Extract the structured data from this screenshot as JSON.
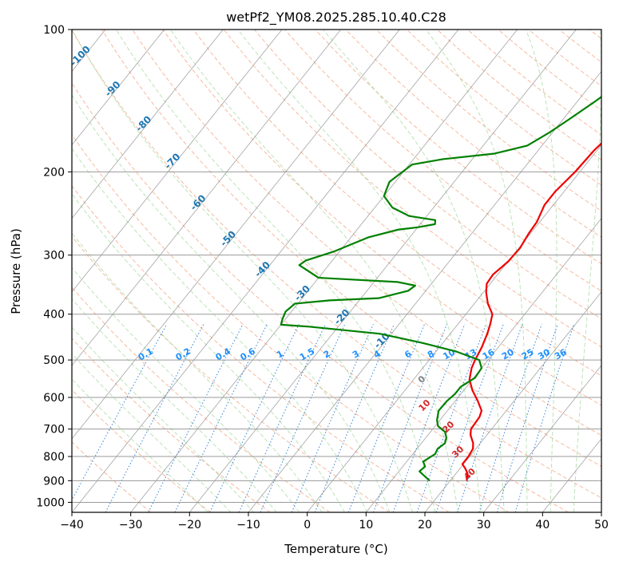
{
  "chart_data": {
    "type": "line",
    "title": "wetPf2_YM08.2025.285.10.40.C28",
    "xlabel": "Temperature (°C)",
    "ylabel": "Pressure (hPa)",
    "xlim": [
      -40,
      50
    ],
    "ylim": [
      1050,
      100
    ],
    "y_scale": "log",
    "grid": true,
    "x_ticks": [
      -40,
      -30,
      -20,
      -10,
      0,
      10,
      20,
      30,
      40,
      50
    ],
    "y_ticks": [
      100,
      200,
      300,
      400,
      500,
      600,
      700,
      800,
      900,
      1000
    ],
    "isotherm_labels": [
      -100,
      -90,
      -80,
      -70,
      -60,
      -50,
      -40,
      -30,
      -20,
      -10
    ],
    "mixing_ratio_labels": [
      "0.1",
      "0.2",
      "0.4",
      "0.6",
      "1",
      "1.5",
      "2",
      "3",
      "4",
      "6",
      "8",
      "10",
      "13",
      "16",
      "20",
      "25",
      "30",
      "36"
    ],
    "moist_lapse_labels": [
      "0",
      "10",
      "20",
      "30",
      "40"
    ],
    "series": [
      {
        "role": "temperature",
        "color": "#ee0000",
        "points": [
          [
            22.8,
            900
          ],
          [
            22.0,
            870
          ],
          [
            21.0,
            850
          ],
          [
            19.8,
            830
          ],
          [
            19.8,
            800
          ],
          [
            19.5,
            770
          ],
          [
            18.8,
            750
          ],
          [
            17.2,
            720
          ],
          [
            16.5,
            700
          ],
          [
            16.3,
            660
          ],
          [
            15.8,
            640
          ],
          [
            13.8,
            610
          ],
          [
            11.5,
            580
          ],
          [
            9.5,
            550
          ],
          [
            8.3,
            520
          ],
          [
            7.8,
            500
          ],
          [
            7.2,
            470
          ],
          [
            6.3,
            440
          ],
          [
            5.5,
            420
          ],
          [
            4.5,
            400
          ],
          [
            2.3,
            380
          ],
          [
            0.5,
            360
          ],
          [
            -0.6,
            345
          ],
          [
            -0.8,
            330
          ],
          [
            0.0,
            310
          ],
          [
            0.2,
            290
          ],
          [
            -0.3,
            270
          ],
          [
            -0.5,
            255
          ],
          [
            -1.5,
            235
          ],
          [
            -1.5,
            220
          ],
          [
            -0.8,
            200
          ],
          [
            -0.5,
            180
          ],
          [
            0.5,
            160
          ],
          [
            3.0,
            140
          ],
          [
            6.5,
            120
          ],
          [
            11.0,
            100
          ]
        ]
      },
      {
        "role": "dewpoint",
        "color": "#008000",
        "points": [
          [
            16.5,
            900
          ],
          [
            15.0,
            880
          ],
          [
            13.5,
            860
          ],
          [
            13.8,
            840
          ],
          [
            12.8,
            820
          ],
          [
            13.8,
            790
          ],
          [
            13.5,
            770
          ],
          [
            14.0,
            750
          ],
          [
            13.5,
            730
          ],
          [
            12.5,
            710
          ],
          [
            10.5,
            690
          ],
          [
            9.5,
            670
          ],
          [
            8.5,
            640
          ],
          [
            8.6,
            610
          ],
          [
            9.0,
            590
          ],
          [
            9.0,
            570
          ],
          [
            10.2,
            545
          ],
          [
            10.0,
            520
          ],
          [
            8.5,
            500
          ],
          [
            3.5,
            480
          ],
          [
            -3.5,
            460
          ],
          [
            -12.0,
            440
          ],
          [
            -25.0,
            425
          ],
          [
            -30.0,
            421
          ],
          [
            -30.5,
            410
          ],
          [
            -31.0,
            395
          ],
          [
            -30.5,
            380
          ],
          [
            -25.0,
            374
          ],
          [
            -17.0,
            370
          ],
          [
            -13.0,
            357
          ],
          [
            -12.5,
            348
          ],
          [
            -16.0,
            342
          ],
          [
            -30.0,
            335
          ],
          [
            -35.0,
            315
          ],
          [
            -34.5,
            308
          ],
          [
            -31.0,
            295
          ],
          [
            -27.0,
            275
          ],
          [
            -23.0,
            265
          ],
          [
            -20.0,
            262
          ],
          [
            -17.5,
            258
          ],
          [
            -18.0,
            253
          ],
          [
            -23.0,
            248
          ],
          [
            -27.0,
            238
          ],
          [
            -30.0,
            225
          ],
          [
            -31.0,
            210
          ],
          [
            -29.5,
            193
          ],
          [
            -25.0,
            188
          ],
          [
            -17.0,
            183
          ],
          [
            -12.5,
            176
          ],
          [
            -10.5,
            165
          ],
          [
            -9.0,
            155
          ],
          [
            -7.0,
            142
          ],
          [
            -5.5,
            132
          ],
          [
            -5.0,
            124
          ],
          [
            -3.5,
            116
          ],
          [
            -3.0,
            108
          ],
          [
            -2.0,
            100
          ]
        ]
      }
    ]
  }
}
